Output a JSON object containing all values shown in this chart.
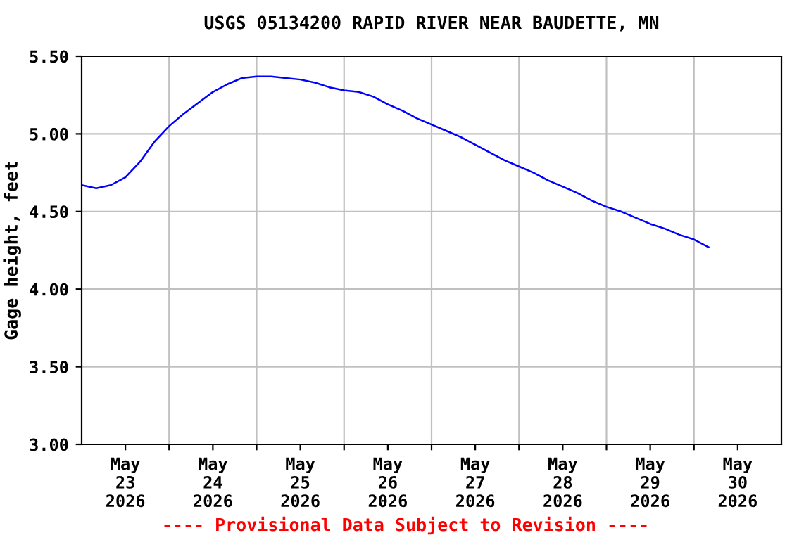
{
  "chart_data": {
    "type": "line",
    "title": "USGS 05134200 RAPID RIVER NEAR BAUDETTE, MN",
    "ylabel": "Gage height, feet",
    "x": [
      "2026-05-23T00:00",
      "2026-05-23T04:00",
      "2026-05-23T08:00",
      "2026-05-23T12:00",
      "2026-05-23T16:00",
      "2026-05-23T20:00",
      "2026-05-24T00:00",
      "2026-05-24T04:00",
      "2026-05-24T08:00",
      "2026-05-24T12:00",
      "2026-05-24T16:00",
      "2026-05-24T20:00",
      "2026-05-25T00:00",
      "2026-05-25T04:00",
      "2026-05-25T08:00",
      "2026-05-25T12:00",
      "2026-05-25T16:00",
      "2026-05-25T20:00",
      "2026-05-26T00:00",
      "2026-05-26T04:00",
      "2026-05-26T08:00",
      "2026-05-26T12:00",
      "2026-05-26T16:00",
      "2026-05-26T20:00",
      "2026-05-27T00:00",
      "2026-05-27T04:00",
      "2026-05-27T08:00",
      "2026-05-27T12:00",
      "2026-05-27T16:00",
      "2026-05-27T20:00",
      "2026-05-28T00:00",
      "2026-05-28T04:00",
      "2026-05-28T08:00",
      "2026-05-28T12:00",
      "2026-05-28T16:00",
      "2026-05-28T20:00",
      "2026-05-29T00:00",
      "2026-05-29T04:00",
      "2026-05-29T08:00",
      "2026-05-29T12:00",
      "2026-05-29T16:00",
      "2026-05-29T20:00",
      "2026-05-30T00:00",
      "2026-05-30T04:00"
    ],
    "series": [
      {
        "color": "#0000ff",
        "values": [
          4.67,
          4.65,
          4.67,
          4.72,
          4.82,
          4.95,
          5.05,
          5.13,
          5.2,
          5.27,
          5.32,
          5.36,
          5.37,
          5.37,
          5.36,
          5.35,
          5.33,
          5.3,
          5.28,
          5.27,
          5.24,
          5.19,
          5.15,
          5.1,
          5.06,
          5.02,
          4.98,
          4.93,
          4.88,
          4.83,
          4.79,
          4.75,
          4.7,
          4.66,
          4.62,
          4.57,
          4.53,
          4.5,
          4.46,
          4.42,
          4.39,
          4.35,
          4.32,
          4.27
        ]
      }
    ],
    "xlim": [
      "2026-05-23T00:00",
      "2026-05-31T00:00"
    ],
    "xticks": [
      {
        "value": "2026-05-23T12:00",
        "label": "May\n23\n2026"
      },
      {
        "value": "2026-05-24T12:00",
        "label": "May\n24\n2026"
      },
      {
        "value": "2026-05-25T12:00",
        "label": "May\n25\n2026"
      },
      {
        "value": "2026-05-26T12:00",
        "label": "May\n26\n2026"
      },
      {
        "value": "2026-05-27T12:00",
        "label": "May\n27\n2026"
      },
      {
        "value": "2026-05-28T12:00",
        "label": "May\n28\n2026"
      },
      {
        "value": "2026-05-29T12:00",
        "label": "May\n29\n2026"
      },
      {
        "value": "2026-05-30T12:00",
        "label": "May\n30\n2026"
      },
      {
        "value": "2026-05-24T00:00",
        "label": null
      },
      {
        "value": "2026-05-25T00:00",
        "label": null
      },
      {
        "value": "2026-05-26T00:00",
        "label": null
      },
      {
        "value": "2026-05-27T00:00",
        "label": null
      },
      {
        "value": "2026-05-28T00:00",
        "label": null
      },
      {
        "value": "2026-05-29T00:00",
        "label": null
      },
      {
        "value": "2026-05-30T00:00",
        "label": null
      }
    ],
    "ylim": [
      3.0,
      5.5
    ],
    "yticks": [
      {
        "value": 3.0,
        "label": "3.00"
      },
      {
        "value": 3.5,
        "label": "3.50"
      },
      {
        "value": 4.0,
        "label": "4.00"
      },
      {
        "value": 4.5,
        "label": "4.50"
      },
      {
        "value": 5.0,
        "label": "5.00"
      },
      {
        "value": 5.5,
        "label": "5.50"
      }
    ],
    "grid": true,
    "marker": "none",
    "line_style": "solid",
    "legend": false,
    "annotations": [
      "---- Provisional Data Subject to Revision ----"
    ]
  }
}
